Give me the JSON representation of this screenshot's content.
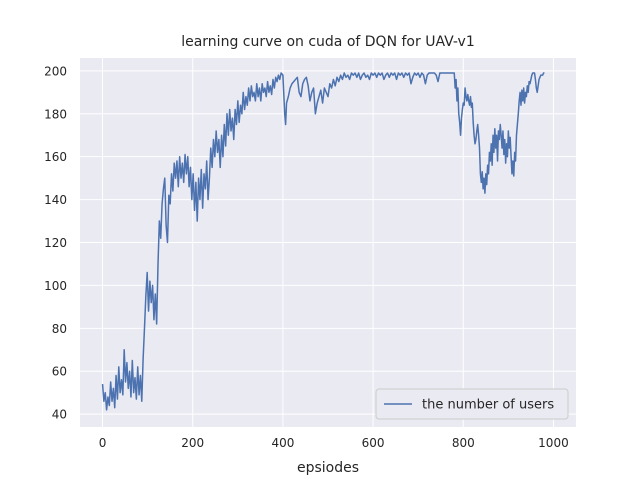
{
  "chart_data": {
    "type": "line",
    "title": "learning curve on cuda of DQN for UAV-v1",
    "xlabel": "epsiodes",
    "ylabel": "",
    "xlim": [
      -50,
      1050
    ],
    "ylim": [
      34,
      206
    ],
    "xticks": [
      0,
      200,
      400,
      600,
      800,
      1000
    ],
    "yticks": [
      40,
      60,
      80,
      100,
      120,
      140,
      160,
      180,
      200
    ],
    "grid": true,
    "legend_position": "lower-right",
    "background_color": "#eaeaf2",
    "series": [
      {
        "name": "the number of users",
        "color": "#4c72b0",
        "points": [
          [
            0,
            54
          ],
          [
            3,
            46
          ],
          [
            6,
            50
          ],
          [
            9,
            42
          ],
          [
            12,
            48
          ],
          [
            15,
            44
          ],
          [
            18,
            55
          ],
          [
            21,
            46
          ],
          [
            24,
            52
          ],
          [
            27,
            43
          ],
          [
            30,
            58
          ],
          [
            33,
            47
          ],
          [
            36,
            62
          ],
          [
            39,
            50
          ],
          [
            42,
            56
          ],
          [
            45,
            49
          ],
          [
            48,
            70
          ],
          [
            51,
            55
          ],
          [
            54,
            64
          ],
          [
            57,
            52
          ],
          [
            60,
            60
          ],
          [
            63,
            48
          ],
          [
            66,
            65
          ],
          [
            69,
            50
          ],
          [
            72,
            57
          ],
          [
            75,
            47
          ],
          [
            78,
            62
          ],
          [
            81,
            49
          ],
          [
            84,
            58
          ],
          [
            87,
            46
          ],
          [
            90,
            66
          ],
          [
            93,
            80
          ],
          [
            96,
            95
          ],
          [
            99,
            106
          ],
          [
            102,
            88
          ],
          [
            105,
            102
          ],
          [
            108,
            92
          ],
          [
            111,
            100
          ],
          [
            114,
            84
          ],
          [
            117,
            96
          ],
          [
            120,
            82
          ],
          [
            123,
            110
          ],
          [
            126,
            130
          ],
          [
            129,
            122
          ],
          [
            132,
            138
          ],
          [
            135,
            145
          ],
          [
            138,
            150
          ],
          [
            141,
            128
          ],
          [
            144,
            120
          ],
          [
            147,
            142
          ],
          [
            150,
            138
          ],
          [
            153,
            152
          ],
          [
            156,
            144
          ],
          [
            159,
            157
          ],
          [
            162,
            150
          ],
          [
            165,
            158
          ],
          [
            168,
            146
          ],
          [
            171,
            160
          ],
          [
            174,
            150
          ],
          [
            177,
            157
          ],
          [
            180,
            148
          ],
          [
            183,
            161
          ],
          [
            186,
            152
          ],
          [
            189,
            160
          ],
          [
            192,
            146
          ],
          [
            195,
            155
          ],
          [
            198,
            140
          ],
          [
            201,
            152
          ],
          [
            204,
            135
          ],
          [
            207,
            148
          ],
          [
            210,
            130
          ],
          [
            213,
            150
          ],
          [
            216,
            140
          ],
          [
            219,
            154
          ],
          [
            222,
            136
          ],
          [
            225,
            152
          ],
          [
            228,
            145
          ],
          [
            231,
            158
          ],
          [
            234,
            140
          ],
          [
            237,
            150
          ],
          [
            240,
            164
          ],
          [
            243,
            155
          ],
          [
            246,
            168
          ],
          [
            249,
            160
          ],
          [
            252,
            172
          ],
          [
            255,
            162
          ],
          [
            258,
            168
          ],
          [
            261,
            155
          ],
          [
            264,
            170
          ],
          [
            267,
            160
          ],
          [
            270,
            175
          ],
          [
            273,
            165
          ],
          [
            276,
            180
          ],
          [
            279,
            170
          ],
          [
            282,
            182
          ],
          [
            285,
            172
          ],
          [
            288,
            178
          ],
          [
            291,
            168
          ],
          [
            294,
            182
          ],
          [
            297,
            175
          ],
          [
            300,
            186
          ],
          [
            303,
            176
          ],
          [
            306,
            184
          ],
          [
            309,
            180
          ],
          [
            312,
            190
          ],
          [
            315,
            182
          ],
          [
            318,
            188
          ],
          [
            321,
            184
          ],
          [
            324,
            192
          ],
          [
            327,
            186
          ],
          [
            330,
            193
          ],
          [
            333,
            188
          ],
          [
            336,
            190
          ],
          [
            339,
            186
          ],
          [
            342,
            194
          ],
          [
            345,
            188
          ],
          [
            348,
            192
          ],
          [
            351,
            186
          ],
          [
            354,
            194
          ],
          [
            357,
            190
          ],
          [
            360,
            192
          ],
          [
            363,
            188
          ],
          [
            366,
            195
          ],
          [
            369,
            190
          ],
          [
            372,
            193
          ],
          [
            375,
            189
          ],
          [
            378,
            196
          ],
          [
            381,
            192
          ],
          [
            384,
            197
          ],
          [
            387,
            195
          ],
          [
            390,
            198
          ],
          [
            393,
            196
          ],
          [
            396,
            199
          ],
          [
            400,
            198
          ],
          [
            404,
            180
          ],
          [
            406,
            175
          ],
          [
            408,
            185
          ],
          [
            412,
            188
          ],
          [
            416,
            192
          ],
          [
            420,
            194
          ],
          [
            424,
            195
          ],
          [
            428,
            196
          ],
          [
            432,
            197
          ],
          [
            436,
            190
          ],
          [
            440,
            188
          ],
          [
            444,
            194
          ],
          [
            448,
            196
          ],
          [
            452,
            197
          ],
          [
            456,
            193
          ],
          [
            460,
            186
          ],
          [
            464,
            190
          ],
          [
            468,
            192
          ],
          [
            472,
            180
          ],
          [
            476,
            185
          ],
          [
            480,
            188
          ],
          [
            484,
            191
          ],
          [
            488,
            185
          ],
          [
            492,
            192
          ],
          [
            496,
            190
          ],
          [
            500,
            188
          ],
          [
            504,
            194
          ],
          [
            508,
            192
          ],
          [
            512,
            196
          ],
          [
            516,
            193
          ],
          [
            520,
            197
          ],
          [
            524,
            195
          ],
          [
            528,
            198
          ],
          [
            532,
            196
          ],
          [
            536,
            199
          ],
          [
            540,
            197
          ],
          [
            544,
            198
          ],
          [
            548,
            196
          ],
          [
            552,
            199
          ],
          [
            556,
            198
          ],
          [
            560,
            199
          ],
          [
            564,
            197
          ],
          [
            568,
            199
          ],
          [
            572,
            196
          ],
          [
            576,
            198
          ],
          [
            580,
            199
          ],
          [
            584,
            197
          ],
          [
            588,
            198
          ],
          [
            592,
            196
          ],
          [
            596,
            199
          ],
          [
            600,
            198
          ],
          [
            604,
            199
          ],
          [
            608,
            197
          ],
          [
            612,
            199
          ],
          [
            616,
            198
          ],
          [
            620,
            199
          ],
          [
            624,
            196
          ],
          [
            628,
            198
          ],
          [
            632,
            199
          ],
          [
            636,
            197
          ],
          [
            640,
            199
          ],
          [
            644,
            198
          ],
          [
            648,
            199
          ],
          [
            652,
            196
          ],
          [
            656,
            199
          ],
          [
            660,
            198
          ],
          [
            664,
            199
          ],
          [
            668,
            197
          ],
          [
            672,
            199
          ],
          [
            676,
            198
          ],
          [
            680,
            199
          ],
          [
            684,
            194
          ],
          [
            688,
            197
          ],
          [
            692,
            199
          ],
          [
            696,
            198
          ],
          [
            700,
            199
          ],
          [
            704,
            197
          ],
          [
            708,
            199
          ],
          [
            712,
            198
          ],
          [
            716,
            194
          ],
          [
            720,
            198
          ],
          [
            724,
            199
          ],
          [
            728,
            199
          ],
          [
            732,
            199
          ],
          [
            736,
            199
          ],
          [
            740,
            198
          ],
          [
            744,
            195
          ],
          [
            748,
            199
          ],
          [
            752,
            199
          ],
          [
            756,
            199
          ],
          [
            760,
            199
          ],
          [
            764,
            199
          ],
          [
            768,
            199
          ],
          [
            772,
            199
          ],
          [
            776,
            199
          ],
          [
            780,
            199
          ],
          [
            782,
            192
          ],
          [
            784,
            196
          ],
          [
            786,
            186
          ],
          [
            788,
            192
          ],
          [
            790,
            180
          ],
          [
            792,
            176
          ],
          [
            794,
            170
          ],
          [
            796,
            178
          ],
          [
            798,
            182
          ],
          [
            800,
            185
          ],
          [
            802,
            184
          ],
          [
            804,
            192
          ],
          [
            806,
            188
          ],
          [
            808,
            186
          ],
          [
            810,
            189
          ],
          [
            812,
            186
          ],
          [
            814,
            184
          ],
          [
            816,
            188
          ],
          [
            818,
            183
          ],
          [
            820,
            185
          ],
          [
            822,
            176
          ],
          [
            824,
            170
          ],
          [
            826,
            166
          ],
          [
            828,
            168
          ],
          [
            830,
            172
          ],
          [
            832,
            175
          ],
          [
            834,
            170
          ],
          [
            836,
            164
          ],
          [
            838,
            152
          ],
          [
            840,
            148
          ],
          [
            842,
            153
          ],
          [
            844,
            145
          ],
          [
            846,
            150
          ],
          [
            848,
            143
          ],
          [
            850,
            152
          ],
          [
            852,
            147
          ],
          [
            854,
            156
          ],
          [
            856,
            152
          ],
          [
            858,
            162
          ],
          [
            860,
            158
          ],
          [
            862,
            166
          ],
          [
            864,
            156
          ],
          [
            866,
            170
          ],
          [
            868,
            162
          ],
          [
            870,
            173
          ],
          [
            872,
            164
          ],
          [
            874,
            170
          ],
          [
            876,
            158
          ],
          [
            878,
            172
          ],
          [
            880,
            168
          ],
          [
            882,
            175
          ],
          [
            884,
            170
          ],
          [
            886,
            164
          ],
          [
            888,
            172
          ],
          [
            890,
            161
          ],
          [
            892,
            168
          ],
          [
            894,
            157
          ],
          [
            896,
            166
          ],
          [
            898,
            160
          ],
          [
            900,
            172
          ],
          [
            902,
            164
          ],
          [
            904,
            169
          ],
          [
            906,
            160
          ],
          [
            908,
            152
          ],
          [
            910,
            158
          ],
          [
            912,
            151
          ],
          [
            914,
            162
          ],
          [
            916,
            158
          ],
          [
            918,
            170
          ],
          [
            920,
            175
          ],
          [
            922,
            180
          ],
          [
            924,
            186
          ],
          [
            926,
            190
          ],
          [
            928,
            184
          ],
          [
            930,
            191
          ],
          [
            932,
            186
          ],
          [
            934,
            192
          ],
          [
            936,
            185
          ],
          [
            938,
            190
          ],
          [
            940,
            188
          ],
          [
            942,
            193
          ],
          [
            944,
            190
          ],
          [
            946,
            195
          ],
          [
            948,
            194
          ],
          [
            950,
            196
          ],
          [
            952,
            198
          ],
          [
            954,
            199
          ],
          [
            956,
            199
          ],
          [
            958,
            199
          ],
          [
            960,
            196
          ],
          [
            962,
            192
          ],
          [
            964,
            190
          ],
          [
            966,
            193
          ],
          [
            968,
            196
          ],
          [
            970,
            197
          ],
          [
            972,
            198
          ],
          [
            974,
            198
          ],
          [
            976,
            198
          ],
          [
            978,
            199
          ],
          [
            980,
            199
          ]
        ]
      }
    ]
  }
}
